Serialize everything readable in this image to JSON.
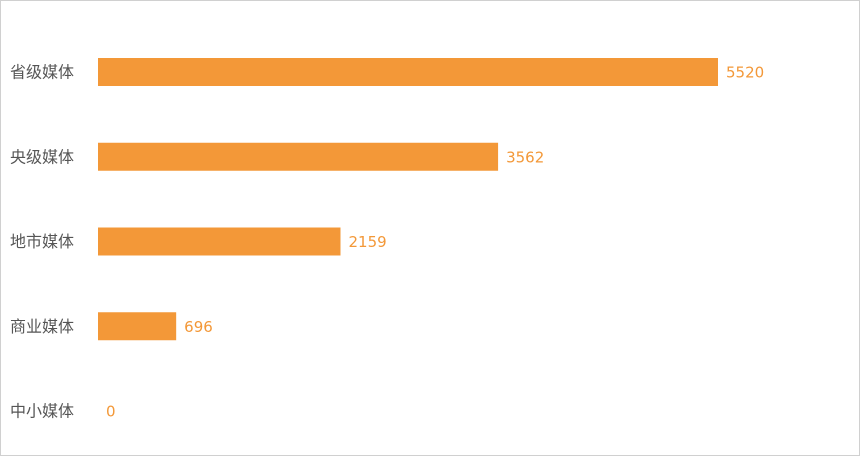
{
  "chart_data": {
    "type": "bar",
    "orientation": "horizontal",
    "categories": [
      "省级媒体",
      "央级媒体",
      "地市媒体",
      "商业媒体",
      "中小媒体"
    ],
    "values": [
      5520,
      3562,
      2159,
      696,
      0
    ],
    "color": "#f39838"
  }
}
